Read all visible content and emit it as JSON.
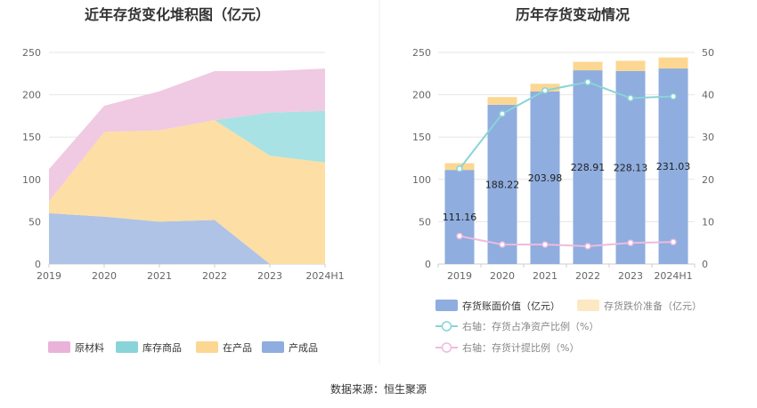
{
  "source": "数据来源：恒生聚源",
  "chart_data": [
    {
      "type": "area",
      "title": "近年存货变化堆积图（亿元）",
      "categories": [
        "2019",
        "2020",
        "2021",
        "2022",
        "2023",
        "2024H1"
      ],
      "stacked": true,
      "ylim": [
        0,
        250
      ],
      "yticks": [
        "0",
        "50",
        "100",
        "150",
        "200",
        "250"
      ],
      "legend_position": "bottom",
      "series": [
        {
          "name": "产成品",
          "values": [
            60,
            56,
            50,
            52,
            0,
            0
          ],
          "color": "#aec3e6"
        },
        {
          "name": "在产品",
          "values": [
            14,
            100,
            108,
            118,
            128,
            120
          ],
          "color": "#fddea4"
        },
        {
          "name": "库存商品",
          "values": [
            0,
            0,
            0,
            0,
            51,
            61
          ],
          "color": "#a8e2e4"
        },
        {
          "name": "原材料",
          "values": [
            38,
            31,
            46,
            58,
            49,
            50
          ],
          "color": "#f0c9e2"
        }
      ],
      "legend": [
        {
          "name": "原材料",
          "color": "#e9b3d9"
        },
        {
          "name": "库存商品",
          "color": "#89d4d8"
        },
        {
          "name": "在产品",
          "color": "#fcd792"
        },
        {
          "name": "产成品",
          "color": "#8fadde"
        }
      ]
    },
    {
      "type": "bar",
      "title": "历年存货变动情况",
      "categories": [
        "2019",
        "2020",
        "2021",
        "2022",
        "2023",
        "2024H1"
      ],
      "ylim": [
        0,
        250
      ],
      "y2lim": [
        0,
        50
      ],
      "yticks": [
        "0",
        "50",
        "100",
        "150",
        "200",
        "250"
      ],
      "y2ticks": [
        "0",
        "10",
        "20",
        "30",
        "40",
        "50"
      ],
      "legend_position": "bottom",
      "series": [
        {
          "name": "存货账面价值（亿元）",
          "type": "bar",
          "stack": true,
          "values": [
            111.16,
            188.22,
            203.98,
            228.91,
            228.13,
            231.03
          ],
          "labels": [
            "111.16",
            "188.22",
            "203.98",
            "228.91",
            "228.13",
            "231.03"
          ],
          "color": "#8fadde"
        },
        {
          "name": "存货跌价准备（亿元）",
          "type": "bar",
          "stack": true,
          "values": [
            8,
            9,
            9,
            10,
            12,
            13
          ],
          "color": "#fcd792"
        },
        {
          "name": "右轴：存货占净资产比例（%）",
          "type": "line",
          "axis": "right",
          "values": [
            22.5,
            35.5,
            41,
            43,
            39.2,
            39.6
          ],
          "color": "#89d4d8"
        },
        {
          "name": "右轴：存货计提比例（%）",
          "type": "line",
          "axis": "right",
          "values": [
            6.6,
            4.6,
            4.6,
            4.2,
            5.0,
            5.2
          ],
          "color": "#edbbdf"
        }
      ]
    }
  ]
}
